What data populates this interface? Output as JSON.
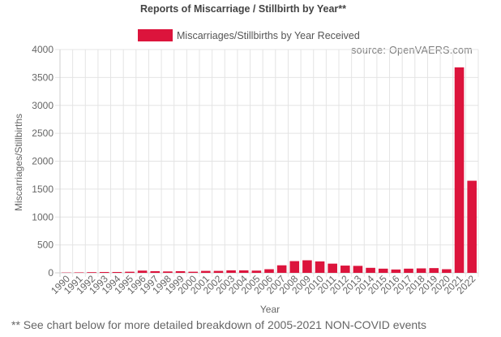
{
  "chart_data": {
    "type": "bar",
    "title": "Reports of Miscarriage / Stillbirth by Year**",
    "legend": {
      "label": "Miscarriages/Stillbirths by Year Received",
      "color": "#dc143c",
      "position": "top"
    },
    "source": "source: OpenVAERS.com",
    "xlabel": "Year",
    "ylabel": "Miscarriages/Stillbirths",
    "ylim": [
      0,
      4000
    ],
    "yticks": [
      0,
      500,
      1000,
      1500,
      2000,
      2500,
      3000,
      3500,
      4000
    ],
    "grid": true,
    "bar_color": "#dc143c",
    "categories": [
      "1990",
      "1991",
      "1992",
      "1993",
      "1994",
      "1995",
      "1996",
      "1997",
      "1998",
      "1999",
      "2000",
      "2001",
      "2002",
      "2003",
      "2004",
      "2005",
      "2006",
      "2007",
      "2008",
      "2009",
      "2010",
      "2011",
      "2012",
      "2013",
      "2014",
      "2015",
      "2016",
      "2017",
      "2018",
      "2019",
      "2020",
      "2021",
      "2022"
    ],
    "series": [
      {
        "name": "Miscarriages/Stillbirths by Year Received",
        "values": [
          5,
          8,
          12,
          15,
          15,
          20,
          40,
          30,
          25,
          30,
          20,
          35,
          35,
          45,
          45,
          40,
          65,
          135,
          210,
          225,
          205,
          165,
          130,
          125,
          90,
          75,
          60,
          75,
          80,
          85,
          65,
          3680,
          1650
        ]
      }
    ]
  },
  "footnote": "** See chart below for more detailed breakdown of 2005-2021 NON-COVID events"
}
